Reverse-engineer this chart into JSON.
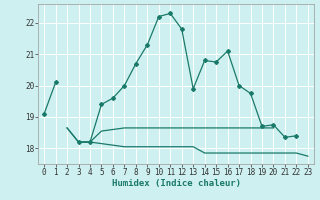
{
  "xlabel": "Humidex (Indice chaleur)",
  "x": [
    0,
    1,
    2,
    3,
    4,
    5,
    6,
    7,
    8,
    9,
    10,
    11,
    12,
    13,
    14,
    15,
    16,
    17,
    18,
    19,
    20,
    21,
    22,
    23
  ],
  "line1": [
    19.1,
    20.1,
    null,
    18.2,
    18.2,
    19.4,
    19.6,
    20.0,
    20.7,
    21.3,
    22.2,
    22.3,
    21.8,
    19.9,
    20.8,
    20.75,
    21.1,
    20.0,
    19.75,
    18.7,
    18.75,
    18.35,
    18.4,
    null
  ],
  "line2": [
    null,
    null,
    18.65,
    18.2,
    18.2,
    18.15,
    18.1,
    18.05,
    18.05,
    18.05,
    18.05,
    18.05,
    18.05,
    18.05,
    17.85,
    17.85,
    17.85,
    17.85,
    17.85,
    17.85,
    17.85,
    17.85,
    17.85,
    17.75
  ],
  "line3": [
    null,
    null,
    18.65,
    18.2,
    18.2,
    18.55,
    18.6,
    18.65,
    18.65,
    18.65,
    18.65,
    18.65,
    18.65,
    18.65,
    18.65,
    18.65,
    18.65,
    18.65,
    18.65,
    18.65,
    18.65,
    null,
    null,
    null
  ],
  "ylim": [
    17.5,
    22.6
  ],
  "yticks": [
    18,
    19,
    20,
    21,
    22
  ],
  "xticks": [
    0,
    1,
    2,
    3,
    4,
    5,
    6,
    7,
    8,
    9,
    10,
    11,
    12,
    13,
    14,
    15,
    16,
    17,
    18,
    19,
    20,
    21,
    22,
    23
  ],
  "line_color": "#1a7a6a",
  "bg_color": "#cff0f0",
  "grid_color": "#b0e0e0",
  "title_fontsize": 6.5,
  "label_fontsize": 6.5,
  "tick_fontsize": 5.5
}
